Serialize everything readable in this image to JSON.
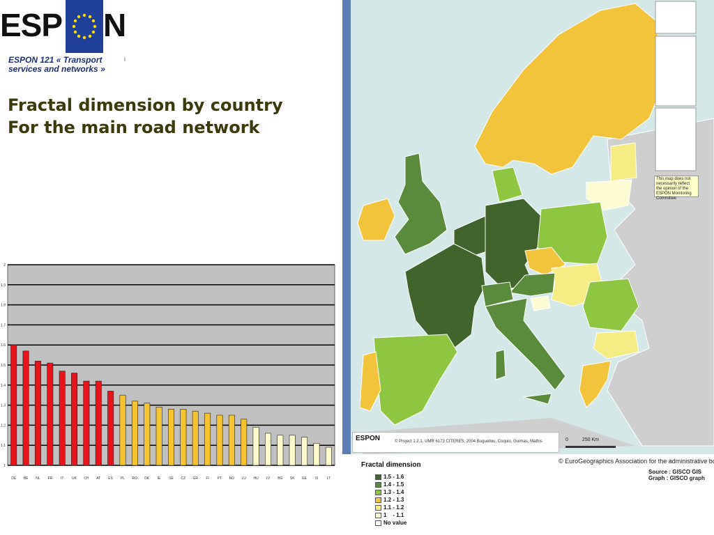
{
  "header": {
    "logo_text_left": "ESP",
    "logo_text_right": "N",
    "project": "ESPON 121 « Transport services and networks »",
    "project_mark": "i",
    "title_line1": "Fractal dimension by country",
    "title_line2": "For the main road network"
  },
  "colors": {
    "bar_red": "#e8141c",
    "bar_yellow": "#f5c430",
    "bar_pale": "#fffacc",
    "plot_bg": "#c0c0c0",
    "grid": "#000000",
    "sea": "#d5e8e8",
    "map_side": "#5b7fb5",
    "neutral_land": "#cfcfcf",
    "title": "#3b3a0c"
  },
  "chart_data": {
    "type": "bar",
    "title": "",
    "xlabel": "",
    "ylabel": "",
    "ylim": [
      1,
      2
    ],
    "yticks": [
      "1",
      "1.1",
      "1.2",
      "1.3",
      "1.4",
      "1.5",
      "1.6",
      "1.7",
      "1.8",
      "1.9",
      "2"
    ],
    "grid": true,
    "categories": [
      "DE",
      "BE",
      "NL",
      "FR",
      "IT",
      "UK",
      "CH",
      "AT",
      "ES",
      "PL",
      "RO",
      "DK",
      "IE",
      "SE",
      "CZ",
      "GR",
      "FI",
      "PT",
      "NO",
      "LU",
      "HU",
      "LV",
      "BG",
      "SK",
      "EE",
      "SI",
      "LT"
    ],
    "values": [
      1.6,
      1.57,
      1.52,
      1.51,
      1.47,
      1.46,
      1.42,
      1.42,
      1.37,
      1.35,
      1.32,
      1.31,
      1.29,
      1.28,
      1.28,
      1.27,
      1.26,
      1.25,
      1.25,
      1.23,
      1.19,
      1.16,
      1.15,
      1.15,
      1.14,
      1.11,
      1.09
    ],
    "bar_groups": [
      "red",
      "red",
      "red",
      "red",
      "red",
      "red",
      "red",
      "red",
      "red",
      "yellow",
      "yellow",
      "yellow",
      "yellow",
      "yellow",
      "yellow",
      "yellow",
      "yellow",
      "yellow",
      "yellow",
      "yellow",
      "pale",
      "pale",
      "pale",
      "pale",
      "pale",
      "pale",
      "pale"
    ]
  },
  "map": {
    "legend_title": "Fractal dimension",
    "legend": [
      {
        "label": "1.5 - 1.6",
        "color": "#41632c"
      },
      {
        "label": "1.4 - 1.5",
        "color": "#5a8a3c"
      },
      {
        "label": "1.3 - 1.4",
        "color": "#8ec641"
      },
      {
        "label": "1.2 - 1.3",
        "color": "#f2c43c"
      },
      {
        "label": "1.1 - 1.2",
        "color": "#f5ec84"
      },
      {
        "label": "1    - 1.1",
        "color": "#fdfbd4"
      },
      {
        "label": "No value",
        "color": "#ffffff"
      }
    ],
    "disclaimer": "This map does not necessarily reflect the opinion of the ESPON Monitoring Committee",
    "credit_logo": "ESPON",
    "credit": "© Project 1.2.1. UMR 6173 CITERES, 2004 Buguellou, Coquio, Guimas, Mathis",
    "scale_zero": "0",
    "scale_label": "250 Km",
    "eurogeographics": "© EuroGeographics Association for the administrative boundaries",
    "source_line1": "Source : GISCO GIS",
    "source_line2": "Graph : GISCO graph"
  }
}
